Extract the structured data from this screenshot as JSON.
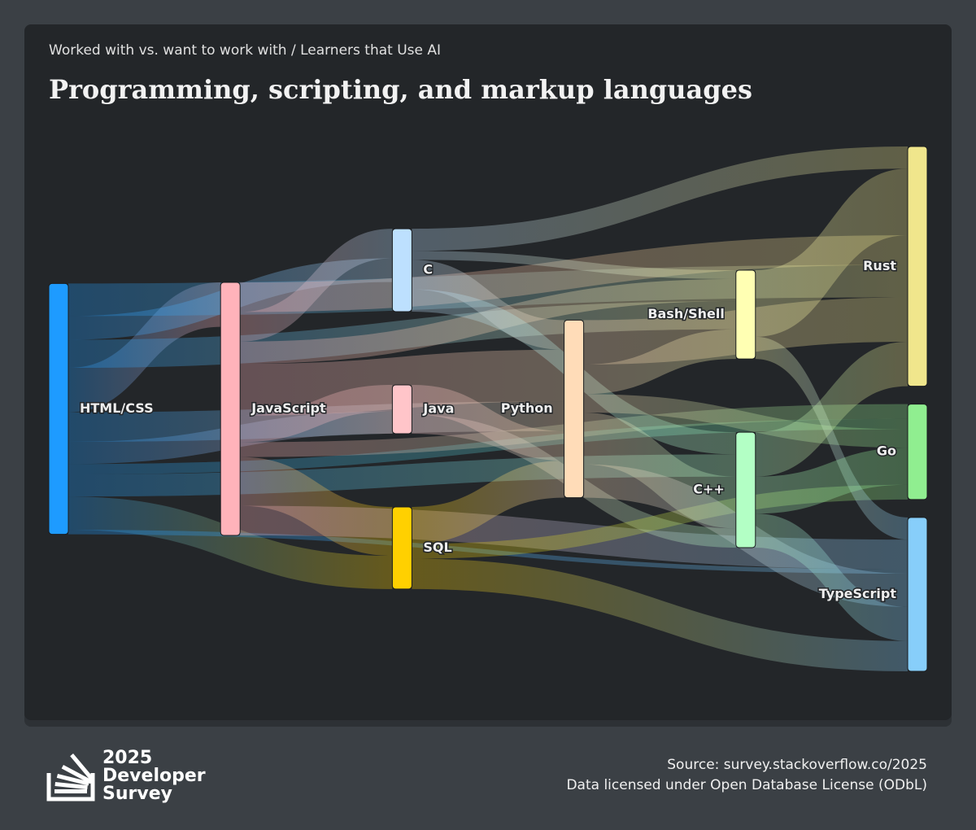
{
  "chart_data": {
    "type": "sankey",
    "subtitle": "Worked with vs. want to work with / Learners that Use AI",
    "title": "Programming, scripting, and markup languages",
    "nodes": [
      {
        "name": "HTML/CSS",
        "color": "#1e9bff"
      },
      {
        "name": "JavaScript",
        "color": "#ffb3ba"
      },
      {
        "name": "C",
        "color": "#bde0fe"
      },
      {
        "name": "Java",
        "color": "#ffc5c9"
      },
      {
        "name": "SQL",
        "color": "#ffd000"
      },
      {
        "name": "Python",
        "color": "#ffdcb8"
      },
      {
        "name": "Bash/Shell",
        "color": "#ffffb3"
      },
      {
        "name": "C++",
        "color": "#b3ffc5"
      },
      {
        "name": "Rust",
        "color": "#f0e68c"
      },
      {
        "name": "Go",
        "color": "#90ee90"
      },
      {
        "name": "TypeScript",
        "color": "#87cefa"
      }
    ],
    "links": [
      {
        "source": "HTML/CSS",
        "target": "JavaScript",
        "value": 60
      },
      {
        "source": "HTML/CSS",
        "target": "C",
        "value": 32
      },
      {
        "source": "HTML/CSS",
        "target": "Java",
        "value": 30
      },
      {
        "source": "HTML/CSS",
        "target": "SQL",
        "value": 45
      },
      {
        "source": "HTML/CSS",
        "target": "Python",
        "value": 40
      },
      {
        "source": "HTML/CSS",
        "target": "Bash/Shell",
        "value": 38
      },
      {
        "source": "HTML/CSS",
        "target": "C++",
        "value": 30
      },
      {
        "source": "HTML/CSS",
        "target": "Rust",
        "value": 44
      },
      {
        "source": "HTML/CSS",
        "target": "Go",
        "value": 14
      },
      {
        "source": "HTML/CSS",
        "target": "TypeScript",
        "value": 6
      },
      {
        "source": "JavaScript",
        "target": "C",
        "value": 40
      },
      {
        "source": "JavaScript",
        "target": "Java",
        "value": 36
      },
      {
        "source": "JavaScript",
        "target": "SQL",
        "value": 66
      },
      {
        "source": "JavaScript",
        "target": "Python",
        "value": 70
      },
      {
        "source": "JavaScript",
        "target": "Bash/Shell",
        "value": 30
      },
      {
        "source": "JavaScript",
        "target": "Rust",
        "value": 40
      },
      {
        "source": "JavaScript",
        "target": "Go",
        "value": 20
      },
      {
        "source": "JavaScript",
        "target": "TypeScript",
        "value": 40
      },
      {
        "source": "C",
        "target": "Python",
        "value": 40
      },
      {
        "source": "C",
        "target": "C++",
        "value": 30
      },
      {
        "source": "C",
        "target": "Rust",
        "value": 30
      },
      {
        "source": "C",
        "target": "Bash/Shell",
        "value": 12
      },
      {
        "source": "Java",
        "target": "Python",
        "value": 40
      },
      {
        "source": "Java",
        "target": "C++",
        "value": 26
      },
      {
        "source": "SQL",
        "target": "Python",
        "value": 50
      },
      {
        "source": "SQL",
        "target": "Go",
        "value": 20
      },
      {
        "source": "SQL",
        "target": "TypeScript",
        "value": 41
      },
      {
        "source": "Python",
        "target": "Bash/Shell",
        "value": 40
      },
      {
        "source": "Python",
        "target": "C++",
        "value": 70
      },
      {
        "source": "Python",
        "target": "Rust",
        "value": 60
      },
      {
        "source": "Python",
        "target": "Go",
        "value": 25
      },
      {
        "source": "Python",
        "target": "TypeScript",
        "value": 45
      },
      {
        "source": "Bash/Shell",
        "target": "Rust",
        "value": 90
      },
      {
        "source": "Bash/Shell",
        "target": "TypeScript",
        "value": 30
      },
      {
        "source": "C++",
        "target": "Rust",
        "value": 60
      },
      {
        "source": "C++",
        "target": "Go",
        "value": 50
      },
      {
        "source": "C++",
        "target": "TypeScript",
        "value": 46
      }
    ]
  },
  "footer": {
    "brand": [
      "2025",
      "Developer",
      "Survey"
    ],
    "source": "Source: survey.stackoverflow.co/2025",
    "license": "Data licensed under Open Database License (ODbL)"
  }
}
